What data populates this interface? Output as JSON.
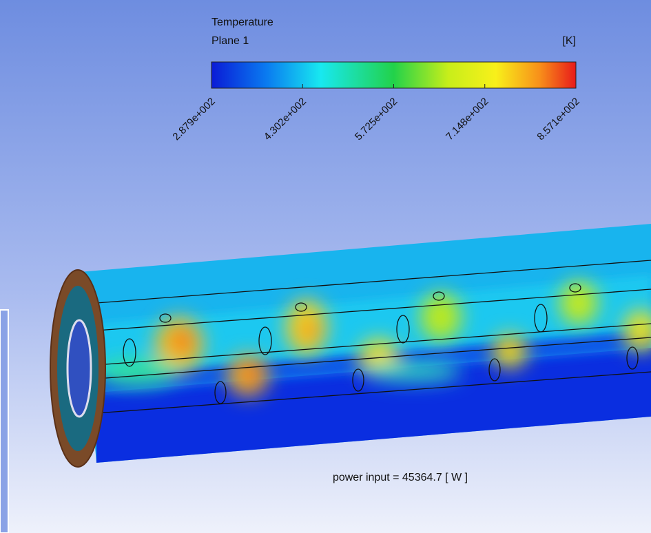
{
  "legend": {
    "title": "Temperature",
    "subtitle": "Plane 1",
    "unit": "[K]",
    "ticks": [
      "2.879e+002",
      "4.302e+002",
      "5.725e+002",
      "7.148e+002",
      "8.571e+002"
    ]
  },
  "annotation": "power input = 45364.7 [ W ]"
}
